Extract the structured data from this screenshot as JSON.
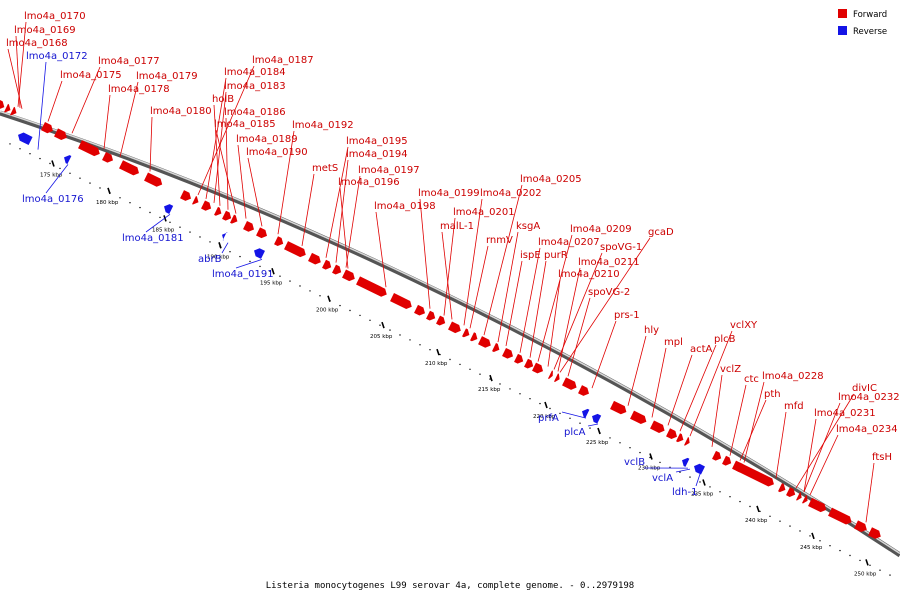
{
  "legend": {
    "forward_label": "Forward",
    "reverse_label": "Reverse",
    "forward_color": "#e00000",
    "reverse_color": "#1414e6"
  },
  "caption": "Listeria monocytogenes L99 serovar 4a, complete genome. - 0..2979198",
  "ticks": [
    "175 kbp",
    "180 kbp",
    "185 kbp",
    "190 kbp",
    "195 kbp",
    "200 kbp",
    "205 kbp",
    "210 kbp",
    "215 kbp",
    "220 kbp",
    "225 kbp",
    "230 kbp",
    "235 kbp",
    "240 kbp",
    "245 kbp",
    "250 kbp"
  ],
  "forward_genes": [
    "lmo4a_0170",
    "lmo4a_0169",
    "lmo4a_0168",
    "lmo4a_0175",
    "lmo4a_0177",
    "lmo4a_0178",
    "lmo4a_0179",
    "lmo4a_0180",
    "lmo4a_0187",
    "lmo4a_0184",
    "lmo4a_0183",
    "holB",
    "lmo4a_0186",
    "lmo4a_0185",
    "lmo4a_0189",
    "lmo4a_0190",
    "lmo4a_0192",
    "metS",
    "lmo4a_0195",
    "lmo4a_0194",
    "lmo4a_0197",
    "lmo4a_0196",
    "lmo4a_0198",
    "lmo4a_0199",
    "lmo4a_0202",
    "lmo4a_0205",
    "lmo4a_0201",
    "malL-1",
    "ksgA",
    "rnmV",
    "ispE",
    "lmo4a_0207",
    "purR",
    "lmo4a_0209",
    "gcaD",
    "spoVG-1",
    "lmo4a_0211",
    "lmo4a_0210",
    "spoVG-2",
    "prs-1",
    "hly",
    "mpl",
    "actA",
    "plcB",
    "vclXY",
    "vclZ",
    "ctc",
    "lmo4a_0228",
    "pth",
    "mfd",
    "divIC",
    "lmo4a_0232",
    "lmo4a_0231",
    "lmo4a_0234",
    "ftsH"
  ],
  "reverse_genes": [
    "lmo4a_0172",
    "lmo4a_0176",
    "lmo4a_0181",
    "abrB",
    "lmo4a_0191",
    "prfA",
    "plcA",
    "vclB",
    "vclA",
    "ldh-1"
  ]
}
